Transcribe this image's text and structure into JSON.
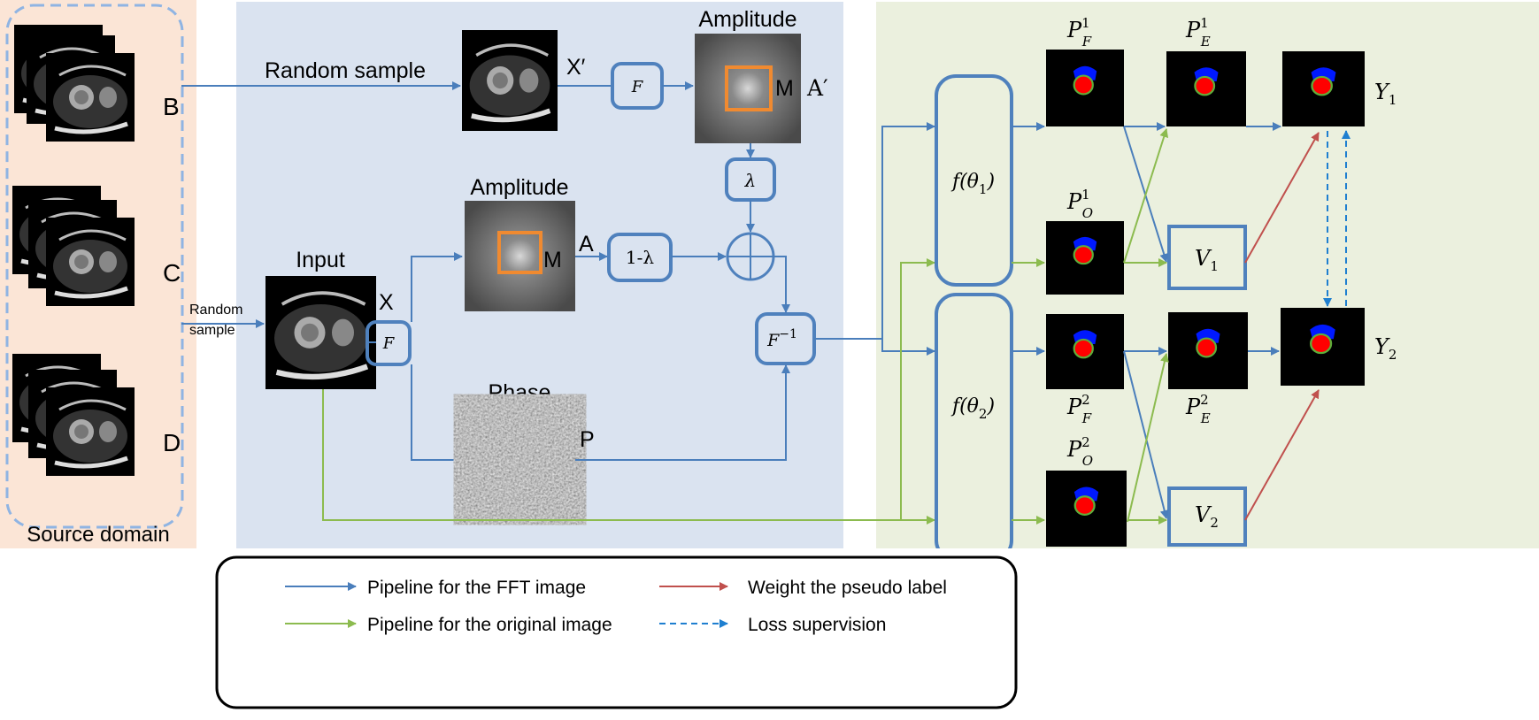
{
  "source_panel": {
    "title": "Source domain",
    "domains": [
      "B",
      "C",
      "D"
    ]
  },
  "fft_panel": {
    "random_sample_top": "Random sample",
    "random_sample_left": [
      "Random",
      "sample"
    ],
    "x_prime_label": "X′",
    "x_label": "X",
    "input_title": "Input",
    "amplitude_title_top": "Amplitude",
    "amplitude_title_mid": "Amplitude",
    "phase_title": "Phase",
    "a_prime_label": "A′",
    "a_label": "A",
    "p_label": "P",
    "mask_label": "M",
    "fourier_label": "F",
    "inverse_fourier_label": "F",
    "inverse_fourier_sup": "−1",
    "lambda_label": "λ",
    "one_minus_lambda_label": "1-λ"
  },
  "seg_panel": {
    "model1": {
      "main": "f(θ",
      "sub": "1",
      "end": ")"
    },
    "model2": {
      "main": "f(θ",
      "sub": "2",
      "end": ")"
    },
    "pf1": {
      "main": "P",
      "sub": "F",
      "sup": "1"
    },
    "pe1": {
      "main": "P",
      "sub": "E",
      "sup": "1"
    },
    "po1": {
      "main": "P",
      "sub": "O",
      "sup": "1"
    },
    "pf2": {
      "main": "P",
      "sub": "F",
      "sup": "2"
    },
    "pe2": {
      "main": "P",
      "sub": "E",
      "sup": "2"
    },
    "po2": {
      "main": "P",
      "sub": "O",
      "sup": "2"
    },
    "v1": {
      "main": "V",
      "sub": "1"
    },
    "v2": {
      "main": "V",
      "sub": "2"
    },
    "y1": {
      "main": "Y",
      "sub": "1"
    },
    "y2": {
      "main": "Y",
      "sub": "2"
    }
  },
  "legend": {
    "fft": "Pipeline for the FFT  image",
    "original": "Pipeline for the original image",
    "weight": "Weight the pseudo label",
    "loss": "Loss supervision"
  },
  "colors": {
    "fft_pipeline": "#4a7ebb",
    "original_pipeline": "#8cbb4f",
    "weight": "#c0504d",
    "loss": "#1f7fd0",
    "mask_box": "#f08a30"
  }
}
